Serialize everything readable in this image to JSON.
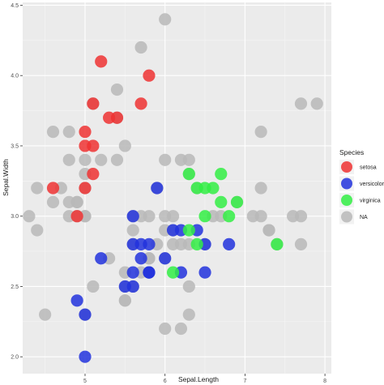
{
  "chart_data": {
    "type": "scatter",
    "xlabel": "Sepal.Length",
    "ylabel": "Sepal.Width",
    "xlim": [
      4.22,
      8.08
    ],
    "ylim": [
      1.88,
      4.52
    ],
    "x_ticks": [
      5,
      6,
      7,
      8
    ],
    "y_ticks": [
      2.0,
      2.5,
      3.0,
      3.5,
      4.0,
      4.5
    ],
    "x_tick_labels": [
      "5",
      "6",
      "7",
      "8"
    ],
    "y_tick_labels": [
      "2.0",
      "2.5",
      "3.0",
      "3.5",
      "4.0",
      "4.5"
    ],
    "grid": true,
    "legend": {
      "title": "Species",
      "placement": "right",
      "entries": [
        {
          "label": "setosa",
          "color": "#f8766d"
        },
        {
          "label": "versicolor",
          "color": "#3344dd"
        },
        {
          "label": "virginica",
          "color": "#44ee55"
        },
        {
          "label": "NA",
          "color": "#b8b8b8"
        }
      ]
    },
    "colors": {
      "panel_background": "#ebebeb",
      "grid_major": "#ffffff",
      "grid_minor": "#f5f5f5",
      "setosa": "#ee3333",
      "versicolor": "#2233dd",
      "virginica": "#33ee44",
      "NA": "#b8b8b8"
    },
    "series": [
      {
        "name": "NA",
        "x": [
          6.0,
          5.7,
          5.4,
          5.4,
          5.1,
          4.6,
          4.8,
          4.8,
          5.0,
          5.0,
          5.0,
          5.4,
          5.2,
          5.5,
          4.9,
          4.9,
          5.0,
          4.8,
          4.4,
          4.3,
          4.4,
          4.6,
          4.7,
          4.8,
          4.9,
          5.0,
          5.5,
          5.8,
          6.0,
          6.2,
          6.3,
          6.0,
          6.1,
          6.3,
          5.9,
          6.4,
          6.6,
          6.7,
          6.9,
          7.1,
          7.2,
          7.7,
          7.9,
          7.2,
          7.3,
          7.4,
          7.7,
          7.7,
          7.6,
          7.3,
          7.2,
          6.3,
          6.5,
          6.2,
          6.1,
          6.1,
          6.0,
          5.8,
          5.6,
          5.6,
          5.7,
          5.8,
          6.3,
          6.2,
          5.5,
          5.0,
          4.5,
          5.6,
          5.5,
          5.1,
          5.9,
          6.3,
          5.7,
          5.8,
          6.0,
          6.0,
          5.5,
          5.3,
          5.6
        ],
        "y": [
          4.4,
          4.2,
          3.9,
          3.7,
          3.8,
          3.6,
          3.6,
          3.4,
          3.4,
          3.3,
          3.2,
          3.4,
          3.4,
          3.5,
          3.1,
          3.0,
          3.0,
          3.0,
          3.2,
          3.0,
          2.9,
          3.1,
          3.2,
          3.1,
          3.1,
          3.0,
          2.4,
          2.7,
          3.0,
          3.4,
          3.4,
          3.4,
          3.0,
          3.3,
          3.2,
          3.2,
          3.0,
          3.0,
          3.1,
          3.0,
          3.2,
          3.8,
          3.8,
          3.6,
          2.9,
          2.8,
          3.0,
          2.8,
          3.0,
          2.9,
          3.0,
          2.8,
          2.8,
          2.8,
          2.9,
          2.8,
          2.9,
          3.0,
          2.8,
          3.0,
          3.0,
          2.7,
          2.5,
          2.2,
          2.6,
          2.3,
          2.3,
          2.5,
          2.5,
          2.5,
          2.8,
          2.3,
          2.6,
          2.6,
          2.2,
          2.7,
          2.4,
          2.7,
          2.9
        ]
      },
      {
        "name": "setosa",
        "x": [
          5.2,
          5.8,
          5.1,
          5.7,
          5.4,
          5.3,
          5.1,
          5.0,
          5.1,
          5.0,
          4.6,
          4.9,
          5.0
        ],
        "y": [
          4.1,
          4.0,
          3.8,
          3.8,
          3.7,
          3.7,
          3.5,
          3.5,
          3.3,
          3.2,
          3.2,
          3.0,
          3.6
        ]
      },
      {
        "name": "versicolor",
        "x": [
          5.9,
          5.6,
          6.1,
          6.2,
          6.4,
          6.5,
          6.8,
          5.7,
          5.8,
          5.7,
          6.0,
          5.8,
          6.2,
          6.5,
          5.5,
          5.6,
          5.8,
          5.6,
          5.0,
          4.9,
          5.0,
          5.2,
          5.6
        ],
        "y": [
          3.2,
          3.0,
          2.9,
          2.9,
          2.9,
          2.8,
          2.8,
          2.8,
          2.8,
          2.7,
          2.7,
          2.6,
          2.6,
          2.6,
          2.5,
          2.6,
          2.6,
          2.5,
          2.3,
          2.4,
          2.0,
          2.7,
          2.8
        ]
      },
      {
        "name": "virginica",
        "x": [
          6.3,
          6.7,
          6.5,
          6.4,
          6.6,
          6.9,
          6.7,
          6.8,
          6.5,
          6.3,
          6.4,
          7.4,
          6.1
        ],
        "y": [
          3.3,
          3.3,
          3.2,
          3.2,
          3.2,
          3.1,
          3.1,
          3.0,
          3.0,
          2.9,
          2.8,
          2.8,
          2.6
        ]
      }
    ]
  }
}
